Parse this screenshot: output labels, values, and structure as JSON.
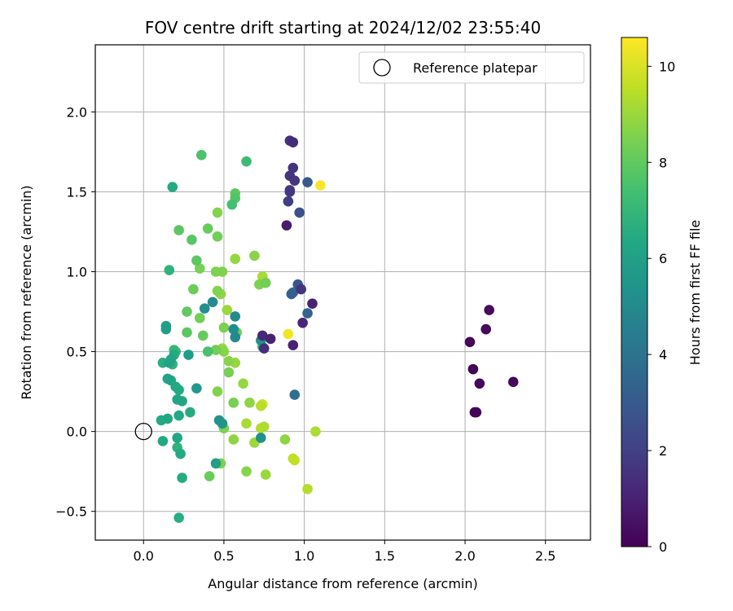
{
  "chart_data": {
    "type": "scatter",
    "title": "FOV centre drift starting at 2024/12/02 23:55:40",
    "xlabel": "Angular distance from reference (arcmin)",
    "ylabel": "Rotation from reference (arcmin)",
    "xlim": [
      -0.3,
      2.78
    ],
    "ylim": [
      -0.68,
      2.42
    ],
    "xticks": [
      0.0,
      0.5,
      1.0,
      1.5,
      2.0,
      2.5
    ],
    "xtick_labels": [
      "0.0",
      "0.5",
      "1.0",
      "1.5",
      "2.0",
      "2.5"
    ],
    "yticks": [
      -0.5,
      0.0,
      0.5,
      1.0,
      1.5,
      2.0
    ],
    "ytick_labels": [
      "−0.5",
      "0.0",
      "0.5",
      "1.0",
      "1.5",
      "2.0"
    ],
    "grid": true,
    "legend": {
      "position": "top-right",
      "entries": [
        {
          "label": "Reference platepar",
          "marker": "open-circle"
        }
      ]
    },
    "reference_point": {
      "x": 0.0,
      "y": 0.0
    },
    "colorbar": {
      "label": "Hours from first FF file",
      "colormap": "viridis",
      "range": [
        0,
        10.6
      ],
      "ticks": [
        0,
        2,
        4,
        6,
        8,
        10
      ],
      "tick_labels": [
        "0",
        "2",
        "4",
        "6",
        "8",
        "10"
      ]
    },
    "points": [
      {
        "x": 2.06,
        "y": 0.12,
        "c": 0.1
      },
      {
        "x": 2.07,
        "y": 0.12,
        "c": 0.2
      },
      {
        "x": 2.09,
        "y": 0.3,
        "c": 0.2
      },
      {
        "x": 2.05,
        "y": 0.39,
        "c": 0.1
      },
      {
        "x": 2.3,
        "y": 0.31,
        "c": 0.2
      },
      {
        "x": 2.03,
        "y": 0.56,
        "c": 0.2
      },
      {
        "x": 2.13,
        "y": 0.64,
        "c": 0.3
      },
      {
        "x": 2.15,
        "y": 0.76,
        "c": 0.3
      },
      {
        "x": 0.89,
        "y": 1.29,
        "c": 0.8
      },
      {
        "x": 0.93,
        "y": 1.81,
        "c": 1.3
      },
      {
        "x": 0.91,
        "y": 1.82,
        "c": 1.5
      },
      {
        "x": 0.93,
        "y": 1.65,
        "c": 1.6
      },
      {
        "x": 0.91,
        "y": 1.6,
        "c": 1.6
      },
      {
        "x": 0.94,
        "y": 1.57,
        "c": 1.7
      },
      {
        "x": 0.91,
        "y": 1.51,
        "c": 1.8
      },
      {
        "x": 0.9,
        "y": 1.44,
        "c": 1.9
      },
      {
        "x": 0.91,
        "y": 1.5,
        "c": 1.7
      },
      {
        "x": 0.97,
        "y": 1.37,
        "c": 2.6
      },
      {
        "x": 1.02,
        "y": 1.56,
        "c": 3.0
      },
      {
        "x": 1.05,
        "y": 0.8,
        "c": 1.0
      },
      {
        "x": 0.98,
        "y": 0.89,
        "c": 1.6
      },
      {
        "x": 0.99,
        "y": 0.68,
        "c": 1.1
      },
      {
        "x": 0.96,
        "y": 0.92,
        "c": 2.8
      },
      {
        "x": 1.02,
        "y": 0.74,
        "c": 3.4
      },
      {
        "x": 0.92,
        "y": 0.86,
        "c": 3.2
      },
      {
        "x": 0.93,
        "y": 0.87,
        "c": 3.6
      },
      {
        "x": 0.74,
        "y": 0.6,
        "c": 1.2
      },
      {
        "x": 0.79,
        "y": 0.58,
        "c": 1.0
      },
      {
        "x": 0.75,
        "y": 0.52,
        "c": 1.4
      },
      {
        "x": 0.93,
        "y": 0.54,
        "c": 1.0
      },
      {
        "x": 0.94,
        "y": 0.23,
        "c": 3.8
      },
      {
        "x": 0.73,
        "y": 0.57,
        "c": 5.4
      },
      {
        "x": 0.57,
        "y": 0.72,
        "c": 5.0
      },
      {
        "x": 0.56,
        "y": 0.64,
        "c": 5.1
      },
      {
        "x": 0.57,
        "y": 0.59,
        "c": 4.9
      },
      {
        "x": 0.43,
        "y": 0.81,
        "c": 5.0
      },
      {
        "x": 0.38,
        "y": 0.77,
        "c": 5.2
      },
      {
        "x": 0.33,
        "y": 0.27,
        "c": 5.6
      },
      {
        "x": 0.47,
        "y": 0.07,
        "c": 5.4
      },
      {
        "x": 0.49,
        "y": 0.05,
        "c": 5.5
      },
      {
        "x": 0.73,
        "y": -0.04,
        "c": 5.3
      },
      {
        "x": 0.45,
        "y": -0.2,
        "c": 5.9
      },
      {
        "x": 0.28,
        "y": 0.48,
        "c": 5.8
      },
      {
        "x": 0.14,
        "y": 0.66,
        "c": 6.0
      },
      {
        "x": 0.14,
        "y": 0.64,
        "c": 5.9
      },
      {
        "x": 0.16,
        "y": 0.43,
        "c": 6.1
      },
      {
        "x": 0.17,
        "y": 0.45,
        "c": 6.2
      },
      {
        "x": 0.19,
        "y": 0.48,
        "c": 6.4
      },
      {
        "x": 0.15,
        "y": 0.33,
        "c": 6.1
      },
      {
        "x": 0.17,
        "y": 0.32,
        "c": 6.3
      },
      {
        "x": 0.2,
        "y": 0.28,
        "c": 6.4
      },
      {
        "x": 0.21,
        "y": 0.2,
        "c": 6.2
      },
      {
        "x": 0.24,
        "y": 0.19,
        "c": 6.3
      },
      {
        "x": 0.22,
        "y": 0.26,
        "c": 6.5
      },
      {
        "x": 0.11,
        "y": 0.07,
        "c": 6.4
      },
      {
        "x": 0.15,
        "y": 0.08,
        "c": 6.3
      },
      {
        "x": 0.22,
        "y": 0.1,
        "c": 6.4
      },
      {
        "x": 0.29,
        "y": 0.12,
        "c": 6.5
      },
      {
        "x": 0.12,
        "y": -0.06,
        "c": 6.3
      },
      {
        "x": 0.21,
        "y": -0.04,
        "c": 6.3
      },
      {
        "x": 0.21,
        "y": -0.1,
        "c": 6.8
      },
      {
        "x": 0.23,
        "y": -0.14,
        "c": 6.4
      },
      {
        "x": 0.24,
        "y": -0.29,
        "c": 6.5
      },
      {
        "x": 0.22,
        "y": -0.54,
        "c": 6.6
      },
      {
        "x": 0.18,
        "y": 1.53,
        "c": 6.4
      },
      {
        "x": 0.16,
        "y": 1.01,
        "c": 6.8
      },
      {
        "x": 0.12,
        "y": 0.43,
        "c": 6.6
      },
      {
        "x": 0.18,
        "y": 0.42,
        "c": 6.8
      },
      {
        "x": 0.2,
        "y": 0.5,
        "c": 7.0
      },
      {
        "x": 0.19,
        "y": 0.51,
        "c": 7.1
      },
      {
        "x": 0.74,
        "y": 0.53,
        "c": 6.9
      },
      {
        "x": 0.64,
        "y": 1.69,
        "c": 7.2
      },
      {
        "x": 0.36,
        "y": 1.73,
        "c": 7.6
      },
      {
        "x": 0.55,
        "y": 1.42,
        "c": 7.4
      },
      {
        "x": 0.57,
        "y": 1.46,
        "c": 7.7
      },
      {
        "x": 0.57,
        "y": 1.49,
        "c": 7.9
      },
      {
        "x": 0.22,
        "y": 1.26,
        "c": 7.9
      },
      {
        "x": 0.3,
        "y": 1.2,
        "c": 7.8
      },
      {
        "x": 0.4,
        "y": 1.27,
        "c": 8.1
      },
      {
        "x": 0.46,
        "y": 1.22,
        "c": 8.3
      },
      {
        "x": 0.46,
        "y": 1.37,
        "c": 8.6
      },
      {
        "x": 0.33,
        "y": 1.07,
        "c": 7.9
      },
      {
        "x": 0.35,
        "y": 1.02,
        "c": 8.4
      },
      {
        "x": 0.45,
        "y": 1.0,
        "c": 8.5
      },
      {
        "x": 0.49,
        "y": 1.0,
        "c": 8.6
      },
      {
        "x": 0.57,
        "y": 1.08,
        "c": 8.9
      },
      {
        "x": 0.69,
        "y": 1.1,
        "c": 8.7
      },
      {
        "x": 0.31,
        "y": 0.89,
        "c": 8.2
      },
      {
        "x": 0.46,
        "y": 0.88,
        "c": 8.6
      },
      {
        "x": 0.48,
        "y": 0.86,
        "c": 8.8
      },
      {
        "x": 0.27,
        "y": 0.75,
        "c": 8.0
      },
      {
        "x": 0.35,
        "y": 0.71,
        "c": 8.3
      },
      {
        "x": 0.27,
        "y": 0.62,
        "c": 7.9
      },
      {
        "x": 0.37,
        "y": 0.6,
        "c": 8.1
      },
      {
        "x": 0.4,
        "y": 0.5,
        "c": 7.5
      },
      {
        "x": 0.45,
        "y": 0.51,
        "c": 8.3
      },
      {
        "x": 0.5,
        "y": 0.5,
        "c": 8.7
      },
      {
        "x": 0.49,
        "y": 0.52,
        "c": 8.9
      },
      {
        "x": 0.5,
        "y": 0.65,
        "c": 8.5
      },
      {
        "x": 0.58,
        "y": 0.62,
        "c": 8.2
      },
      {
        "x": 0.52,
        "y": 0.76,
        "c": 9.0
      },
      {
        "x": 0.72,
        "y": 0.92,
        "c": 8.5
      },
      {
        "x": 0.76,
        "y": 0.93,
        "c": 8.3
      },
      {
        "x": 0.74,
        "y": 0.97,
        "c": 9.2
      },
      {
        "x": 0.53,
        "y": 0.44,
        "c": 8.7
      },
      {
        "x": 0.57,
        "y": 0.43,
        "c": 8.9
      },
      {
        "x": 0.53,
        "y": 0.37,
        "c": 8.4
      },
      {
        "x": 0.62,
        "y": 0.3,
        "c": 8.9
      },
      {
        "x": 0.46,
        "y": 0.25,
        "c": 8.6
      },
      {
        "x": 0.56,
        "y": 0.18,
        "c": 8.4
      },
      {
        "x": 0.66,
        "y": 0.18,
        "c": 8.8
      },
      {
        "x": 0.73,
        "y": 0.16,
        "c": 9.5
      },
      {
        "x": 0.74,
        "y": 0.17,
        "c": 9.8
      },
      {
        "x": 0.64,
        "y": 0.05,
        "c": 9.2
      },
      {
        "x": 0.73,
        "y": 0.02,
        "c": 9.4
      },
      {
        "x": 0.75,
        "y": 0.03,
        "c": 9.3
      },
      {
        "x": 0.5,
        "y": 0.02,
        "c": 8.5
      },
      {
        "x": 0.56,
        "y": -0.05,
        "c": 8.8
      },
      {
        "x": 0.69,
        "y": -0.07,
        "c": 9.0
      },
      {
        "x": 0.88,
        "y": -0.05,
        "c": 8.8
      },
      {
        "x": 1.07,
        "y": 0.0,
        "c": 9.3
      },
      {
        "x": 0.93,
        "y": -0.17,
        "c": 9.6
      },
      {
        "x": 0.94,
        "y": -0.18,
        "c": 9.7
      },
      {
        "x": 0.64,
        "y": -0.25,
        "c": 8.7
      },
      {
        "x": 0.76,
        "y": -0.27,
        "c": 9.0
      },
      {
        "x": 1.02,
        "y": -0.36,
        "c": 9.4
      },
      {
        "x": 0.48,
        "y": -0.2,
        "c": 8.5
      },
      {
        "x": 0.41,
        "y": -0.28,
        "c": 8.2
      },
      {
        "x": 0.9,
        "y": 0.61,
        "c": 10.4
      },
      {
        "x": 1.1,
        "y": 1.54,
        "c": 10.5
      }
    ]
  }
}
